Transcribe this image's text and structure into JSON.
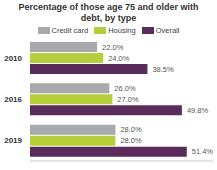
{
  "chart_data": {
    "type": "bar",
    "orientation": "horizontal",
    "title": "Percentage of those age 75 and older with debt, by type",
    "categories": [
      "2010",
      "2016",
      "2019"
    ],
    "series": [
      {
        "name": "Credit card",
        "color": "#a7a9ac",
        "values": [
          22.0,
          26.0,
          28.0
        ],
        "value_labels": [
          "22.0%",
          "26.0%",
          "28.0%"
        ]
      },
      {
        "name": "Housing",
        "color": "#b5cf3a",
        "values": [
          24.0,
          27.0,
          28.0
        ],
        "value_labels": [
          "24.0%",
          "27.0%",
          "28.0%"
        ]
      },
      {
        "name": "Overall",
        "color": "#5a2c5c",
        "values": [
          38.5,
          49.8,
          51.4
        ],
        "value_labels": [
          "38.5%",
          "49.8%",
          "51.4%"
        ]
      }
    ],
    "xlim": [
      0,
      60
    ],
    "data_labels": true,
    "legend": "top",
    "tick_labels": "y",
    "grid": false
  }
}
